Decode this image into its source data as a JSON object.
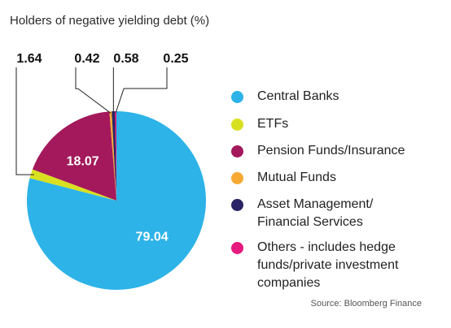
{
  "chart_data": {
    "type": "pie",
    "title": "Holders of negative yielding debt (%)",
    "slices": [
      {
        "label": "Central Banks",
        "value": 79.04,
        "color": "#2db3e8",
        "value_label": "79.04"
      },
      {
        "label": "ETFs",
        "value": 1.64,
        "color": "#d8e021",
        "value_label": "1.64"
      },
      {
        "label": "Pension Funds/Insurance",
        "value": 18.07,
        "color": "#a3195b",
        "value_label": "18.07"
      },
      {
        "label": "Mutual Funds",
        "value": 0.42,
        "color": "#f6a933",
        "value_label": "0.42"
      },
      {
        "label": "Asset Management/\nFinancial Services",
        "value": 0.58,
        "color": "#2a2466",
        "value_label": "0.58"
      },
      {
        "label": "Others - includes hedge\nfunds/private investment\ncompanies",
        "value": 0.25,
        "color": "#e5197e",
        "value_label": "0.25"
      }
    ],
    "legend_position": "right",
    "source": "Source: Bloomberg Finance"
  }
}
